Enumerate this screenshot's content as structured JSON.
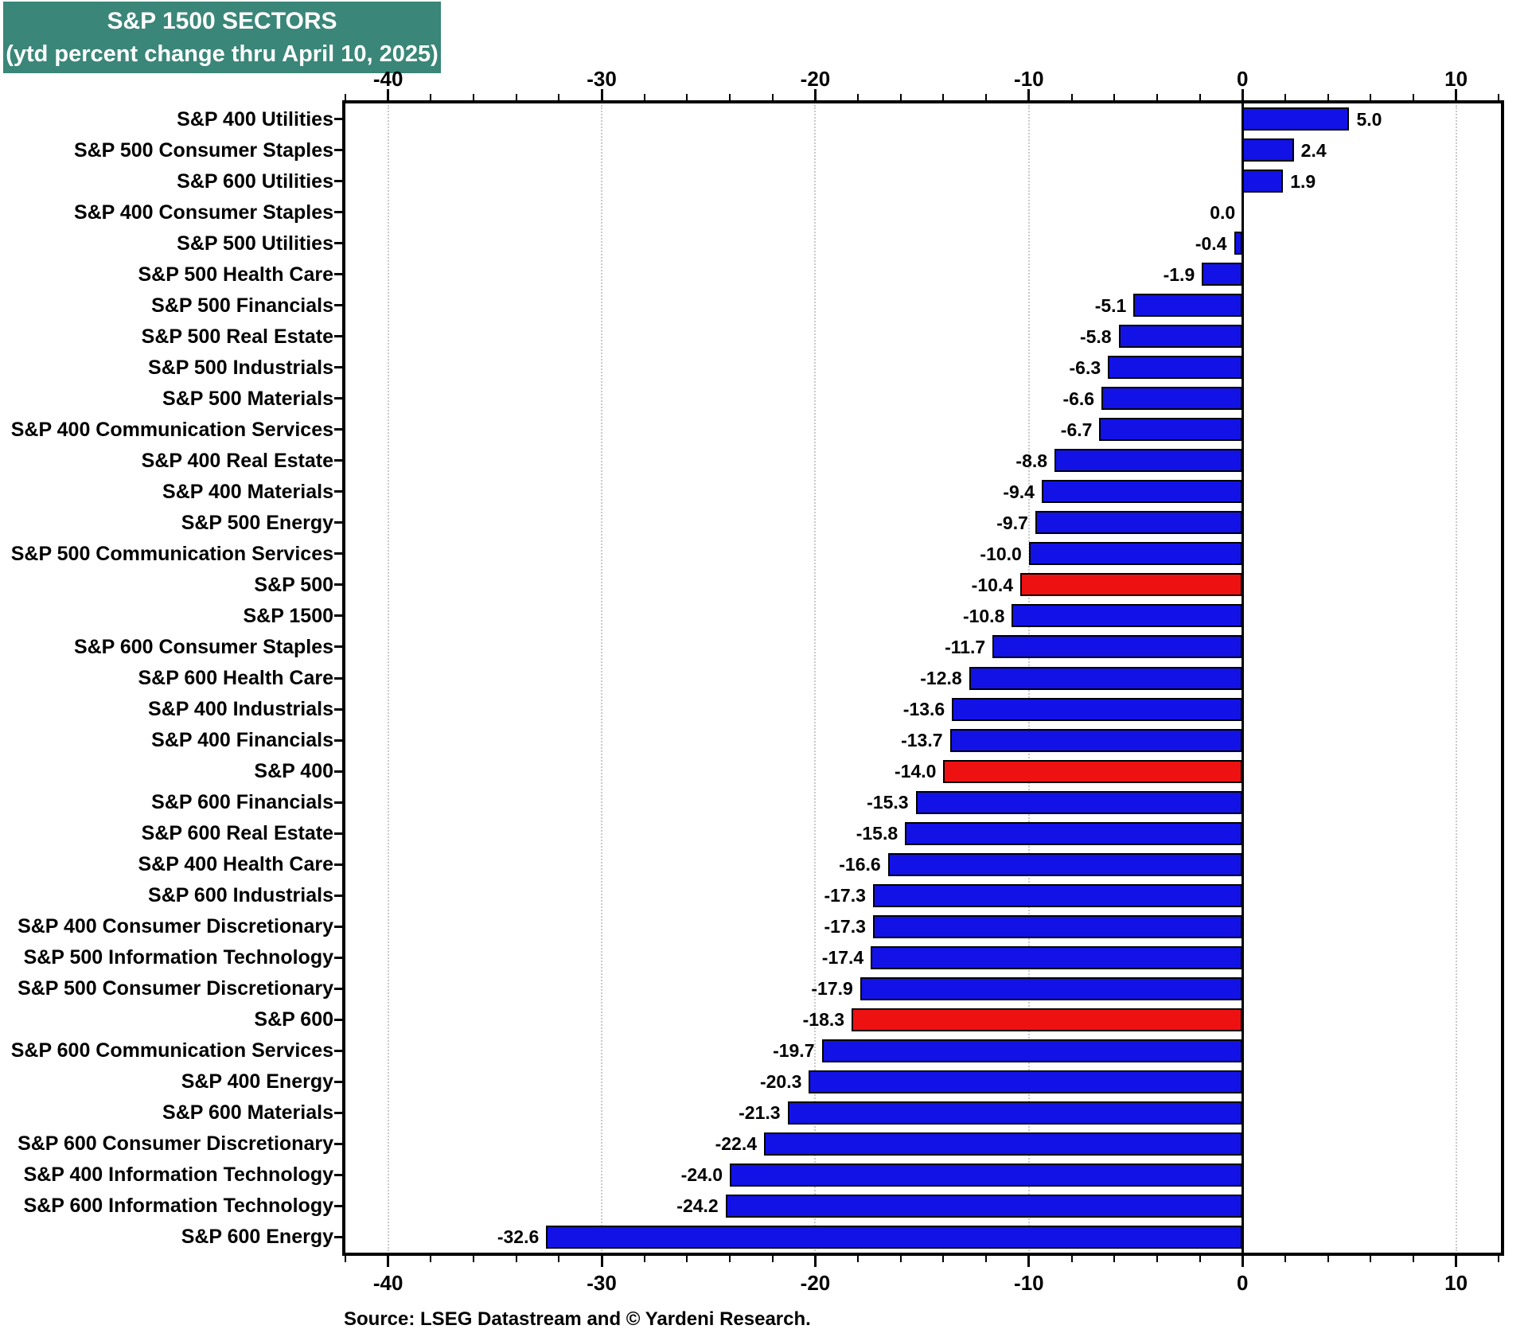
{
  "title": {
    "line1": "S&P 1500 SECTORS",
    "line2": "(ytd percent change thru April 10, 2025)"
  },
  "source": "Source: LSEG Datastream and © Yardeni Research.",
  "colors": {
    "title_bg": "#3A8678",
    "title_text": "#FFFFFF",
    "bar_blue": "#1212E6",
    "bar_red": "#EE1111",
    "grid": "#C9C9C9",
    "axis": "#000000"
  },
  "chart_data": {
    "type": "bar",
    "orientation": "horizontal",
    "title": "S&P 1500 SECTORS (ytd percent change thru April 10, 2025)",
    "xlabel": "",
    "ylabel": "",
    "xlim": [
      -42.0,
      12.1
    ],
    "x_major_ticks": [
      -40,
      -30,
      -20,
      -10,
      0,
      10
    ],
    "x_minor_tick_step": 2,
    "grid": "dotted vertical gridlines at major ticks",
    "legend": "none",
    "value_label_format": "one decimal",
    "bars": [
      {
        "label": "S&P 400 Utilities",
        "value": 5.0,
        "color": "blue"
      },
      {
        "label": "S&P 500 Consumer Staples",
        "value": 2.4,
        "color": "blue"
      },
      {
        "label": "S&P 600 Utilities",
        "value": 1.9,
        "color": "blue"
      },
      {
        "label": "S&P 400 Consumer Staples",
        "value": 0.0,
        "color": "blue"
      },
      {
        "label": "S&P 500 Utilities",
        "value": -0.4,
        "color": "blue"
      },
      {
        "label": "S&P 500 Health Care",
        "value": -1.9,
        "color": "blue"
      },
      {
        "label": "S&P 500 Financials",
        "value": -5.1,
        "color": "blue"
      },
      {
        "label": "S&P 500 Real Estate",
        "value": -5.8,
        "color": "blue"
      },
      {
        "label": "S&P 500 Industrials",
        "value": -6.3,
        "color": "blue"
      },
      {
        "label": "S&P 500 Materials",
        "value": -6.6,
        "color": "blue"
      },
      {
        "label": "S&P 400 Communication Services",
        "value": -6.7,
        "color": "blue"
      },
      {
        "label": "S&P 400 Real Estate",
        "value": -8.8,
        "color": "blue"
      },
      {
        "label": "S&P 400 Materials",
        "value": -9.4,
        "color": "blue"
      },
      {
        "label": "S&P 500 Energy",
        "value": -9.7,
        "color": "blue"
      },
      {
        "label": "S&P 500 Communication Services",
        "value": -10.0,
        "color": "blue"
      },
      {
        "label": "S&P 500",
        "value": -10.4,
        "color": "red"
      },
      {
        "label": "S&P 1500",
        "value": -10.8,
        "color": "blue"
      },
      {
        "label": "S&P 600 Consumer Staples",
        "value": -11.7,
        "color": "blue"
      },
      {
        "label": "S&P 600 Health Care",
        "value": -12.8,
        "color": "blue"
      },
      {
        "label": "S&P 400 Industrials",
        "value": -13.6,
        "color": "blue"
      },
      {
        "label": "S&P 400 Financials",
        "value": -13.7,
        "color": "blue"
      },
      {
        "label": "S&P 400",
        "value": -14.0,
        "color": "red"
      },
      {
        "label": "S&P 600 Financials",
        "value": -15.3,
        "color": "blue"
      },
      {
        "label": "S&P 600 Real Estate",
        "value": -15.8,
        "color": "blue"
      },
      {
        "label": "S&P 400 Health Care",
        "value": -16.6,
        "color": "blue"
      },
      {
        "label": "S&P 600 Industrials",
        "value": -17.3,
        "color": "blue"
      },
      {
        "label": "S&P 400 Consumer Discretionary",
        "value": -17.3,
        "color": "blue"
      },
      {
        "label": "S&P 500 Information Technology",
        "value": -17.4,
        "color": "blue"
      },
      {
        "label": "S&P 500 Consumer Discretionary",
        "value": -17.9,
        "color": "blue"
      },
      {
        "label": "S&P 600",
        "value": -18.3,
        "color": "red"
      },
      {
        "label": "S&P 600 Communication Services",
        "value": -19.7,
        "color": "blue"
      },
      {
        "label": "S&P 400 Energy",
        "value": -20.3,
        "color": "blue"
      },
      {
        "label": "S&P 600 Materials",
        "value": -21.3,
        "color": "blue"
      },
      {
        "label": "S&P 600 Consumer Discretionary",
        "value": -22.4,
        "color": "blue"
      },
      {
        "label": "S&P 400 Information Technology",
        "value": -24.0,
        "color": "blue"
      },
      {
        "label": "S&P 600 Information Technology",
        "value": -24.2,
        "color": "blue"
      },
      {
        "label": "S&P 600 Energy",
        "value": -32.6,
        "color": "blue"
      }
    ]
  }
}
